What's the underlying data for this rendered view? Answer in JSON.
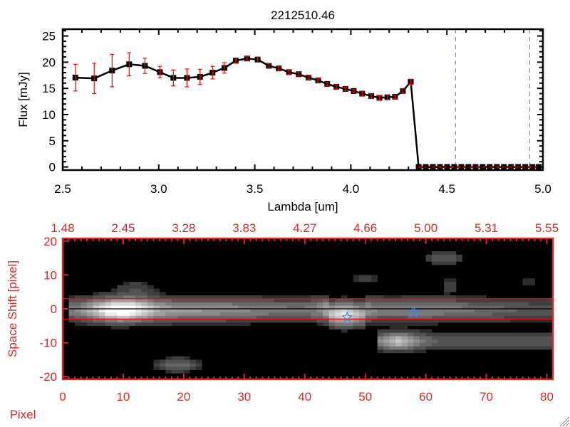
{
  "colors": {
    "line": "#000000",
    "error_bar": "#ff0000",
    "marker_line": "#3a8ee6",
    "bottom_axes": "#d42a2a",
    "aperture": "#ff0000"
  },
  "chart_data": [
    {
      "type": "line",
      "title": "2212510.46",
      "xlabel": "Lambda [um]",
      "ylabel": "Flux [mJy]",
      "xlim": [
        2.5,
        5.0
      ],
      "ylim": [
        -0.6,
        26.3
      ],
      "xticks": [
        "2.5",
        "3.0",
        "3.5",
        "4.0",
        "4.5",
        "5.0"
      ],
      "yticks": [
        "0",
        "5",
        "10",
        "15",
        "20",
        "25"
      ],
      "grid": false,
      "series": [
        {
          "x": [
            2.566,
            2.664,
            2.757,
            2.846,
            2.928,
            3.006,
            3.076,
            3.147,
            3.215,
            3.28,
            3.342,
            3.401,
            3.46,
            3.515,
            3.573,
            3.625,
            3.678,
            3.729,
            3.78,
            3.83,
            3.877,
            3.925,
            3.972,
            4.015,
            4.059,
            4.106,
            4.149,
            4.19,
            4.23,
            4.271,
            4.312,
            4.353,
            4.39,
            4.427,
            4.464,
            4.501,
            4.538,
            4.575,
            4.612,
            4.649,
            4.686,
            4.723,
            4.76,
            4.797,
            4.834,
            4.871,
            4.908,
            4.945,
            4.978
          ],
          "y": [
            17.05,
            16.9,
            18.4,
            19.6,
            19.3,
            18.1,
            17.0,
            17.0,
            17.2,
            18.0,
            18.9,
            20.3,
            20.7,
            20.5,
            19.3,
            18.8,
            18.1,
            17.7,
            17.05,
            16.5,
            15.85,
            15.3,
            14.9,
            14.5,
            14.0,
            13.55,
            13.2,
            13.3,
            13.4,
            14.5,
            16.25,
            0,
            0,
            0,
            0,
            0,
            0,
            0,
            0,
            0,
            0,
            0,
            0,
            0,
            0,
            0,
            0,
            0,
            0
          ],
          "yerr": [
            2.55,
            2.9,
            3.1,
            2.2,
            1.45,
            1.1,
            1.5,
            1.7,
            1.45,
            1.2,
            1.0,
            0.5,
            0.4,
            0.5,
            0.4,
            0.3,
            0.4,
            0.35,
            0.35,
            0.3,
            0.35,
            0.4,
            0.35,
            0.3,
            0.35,
            0.4,
            0.4,
            0.4,
            0.35,
            0.4,
            0.5,
            0,
            0,
            0,
            0,
            0,
            0,
            0,
            0,
            0,
            0,
            0,
            0,
            0,
            0,
            0,
            0,
            0,
            0
          ]
        }
      ],
      "reference_lines": {
        "vertical_dashed_x": [
          4.545,
          4.931
        ],
        "horizontal_dashed_y": 0
      }
    },
    {
      "type": "heatmap",
      "xlabel": "Pixel",
      "ylabel": "Space Shift [pixel]",
      "xlim": [
        0,
        81
      ],
      "ylim": [
        -20.8,
        20.8
      ],
      "xticks": [
        "0",
        "10",
        "20",
        "30",
        "40",
        "50",
        "60",
        "70",
        "80"
      ],
      "yticks": [
        "20",
        "10",
        "0",
        "-10",
        "-20"
      ],
      "top_xticks": [
        "1.48",
        "2.45",
        "3.28",
        "3.83",
        "4.27",
        "4.66",
        "5.00",
        "5.31",
        "5.55"
      ],
      "aperture_y": [
        3,
        -3
      ],
      "center_y": 0,
      "star_markers": [
        {
          "x": 47,
          "y": -2.5
        },
        {
          "x": 58,
          "y": -1
        }
      ]
    }
  ]
}
